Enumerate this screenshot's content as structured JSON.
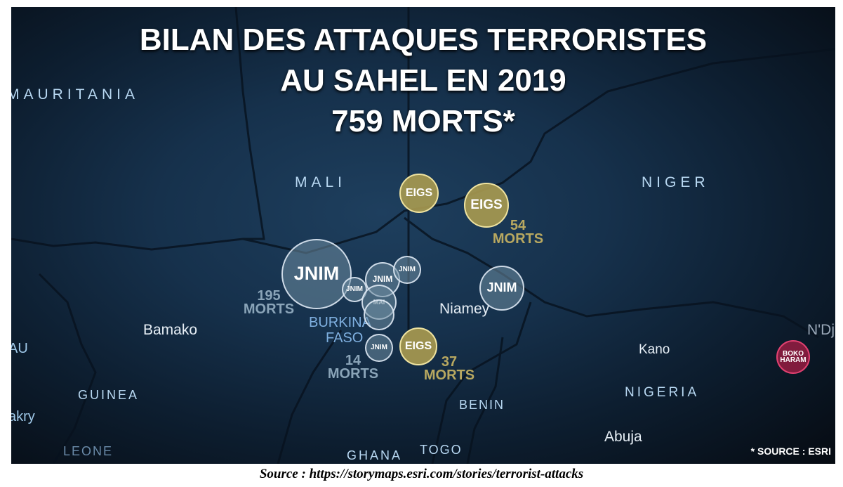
{
  "title": {
    "line1": "BILAN DES ATTAQUES TERRORISTES",
    "line2": "AU SAHEL EN 2019",
    "line3": "759 MORTS*"
  },
  "places": {
    "mauritania": "MAURITANIA",
    "mali": "MALI",
    "niger": "NIGER",
    "bamako": "Bamako",
    "niamey": "Niamey",
    "burkina": "BURKINA",
    "faso": "FASO",
    "kano": "Kano",
    "nigeria": "NIGERIA",
    "guinea": "GUINEA",
    "benin": "BENIN",
    "abuja": "Abuja",
    "ghana": "GHANA",
    "togo": "TOGO",
    "akry": "akry",
    "leone": "LEONE",
    "au": "AU",
    "ndj": "N'Dj"
  },
  "bubbles": [
    {
      "label": "JNIM",
      "group": "jnim"
    },
    {
      "label": "JNIM",
      "group": "jnim"
    },
    {
      "label": "JNIM",
      "group": "jnim"
    },
    {
      "label": "JNIM",
      "group": "jnim"
    },
    {
      "label": "MAI",
      "group": "jnim"
    },
    {
      "label": "",
      "group": "jnim"
    },
    {
      "label": "JNIM",
      "group": "jnim"
    },
    {
      "label": "JNIM",
      "group": "jnim"
    },
    {
      "label": "EIGS",
      "group": "eigs"
    },
    {
      "label": "EIGS",
      "group": "eigs"
    },
    {
      "label": "EIGS",
      "group": "eigs"
    },
    {
      "label": "BOKO HARAM",
      "group": "boko"
    }
  ],
  "deaths": [
    {
      "count": "195",
      "unit": "MORTS",
      "group": "jnim"
    },
    {
      "count": "54",
      "unit": "MORTS",
      "group": "eigs"
    },
    {
      "count": "14",
      "unit": "MORTS",
      "group": "jnim"
    },
    {
      "count": "37",
      "unit": "MORTS",
      "group": "eigs"
    }
  ],
  "colors": {
    "jnim_text": "#8aa4b8",
    "eigs_text": "#b8a860",
    "boko": "#d02a5a"
  },
  "source_note": "* SOURCE : ESRI",
  "caption": "Source : https://storymaps.esri.com/stories/terrorist-attacks"
}
